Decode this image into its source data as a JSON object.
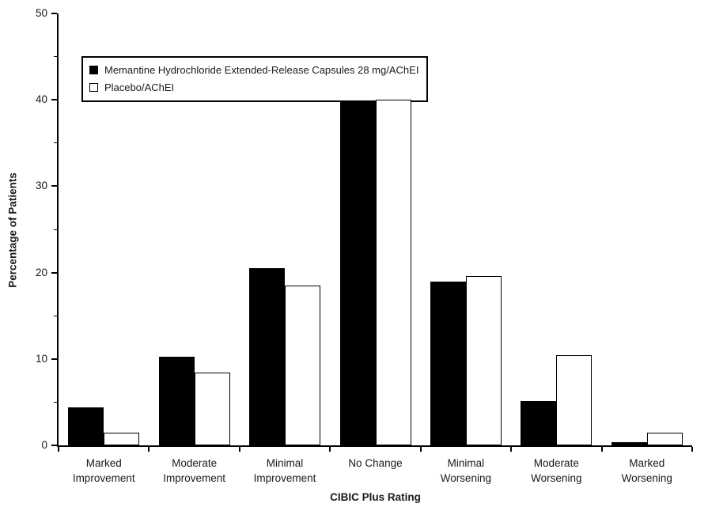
{
  "chart_data": {
    "type": "bar",
    "title": "",
    "xlabel": "CIBIC Plus Rating",
    "ylabel": "Percentage of Patients",
    "ylim": [
      0,
      50
    ],
    "y_major_ticks": [
      0,
      10,
      20,
      30,
      40,
      50
    ],
    "y_minor_ticks": [
      5,
      15,
      25,
      35,
      45
    ],
    "grid": false,
    "legend_position": "top-left inside plot area",
    "categories": [
      "Marked\nImprovement",
      "Moderate\nImprovement",
      "Minimal\nImprovement",
      "No Change",
      "Minimal\nWorsening",
      "Moderate\nWorsening",
      "Marked\nWorsening"
    ],
    "series": [
      {
        "name": "Memantine Hydrochloride Extended-Release Capsules 28 mg/AChEI",
        "fill": "#000000",
        "values": [
          4.4,
          10.3,
          20.5,
          39.9,
          19.0,
          5.1,
          0.4
        ]
      },
      {
        "name": "Placebo/AChEI",
        "fill": "#ffffff",
        "stroke": "#000000",
        "values": [
          1.5,
          8.4,
          18.5,
          40.0,
          19.6,
          10.4,
          1.5
        ]
      }
    ],
    "colors": {
      "axis": "#000000",
      "text": "#1a1a1a",
      "background": "#ffffff"
    }
  }
}
